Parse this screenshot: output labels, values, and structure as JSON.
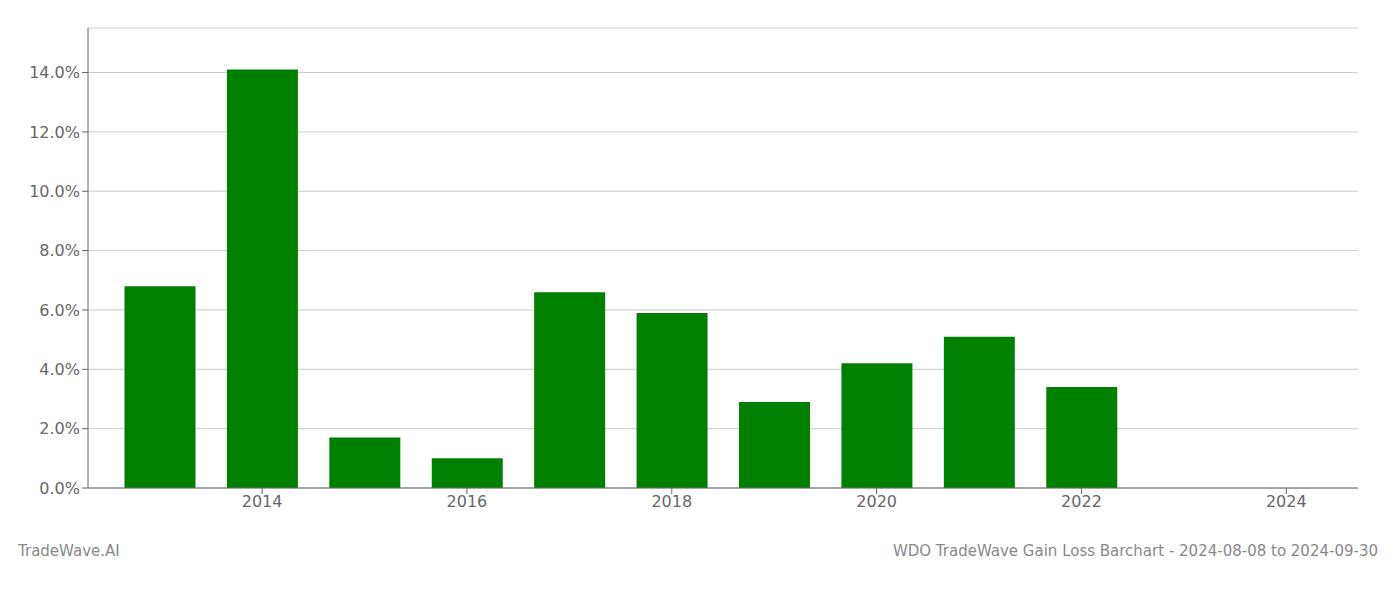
{
  "chart_data": {
    "type": "bar",
    "title": "WDO TradeWave Gain Loss Barchart - 2024-08-08 to 2024-09-30",
    "annotations": [
      "TradeWave.AI"
    ],
    "x": [
      2013,
      2014,
      2015,
      2016,
      2017,
      2018,
      2019,
      2020,
      2021,
      2022,
      2023
    ],
    "values": [
      0.068,
      0.141,
      0.017,
      0.01,
      0.066,
      0.059,
      0.029,
      0.042,
      0.051,
      0.034,
      0.0
    ],
    "color": "#008000",
    "xlim": [
      2012.3,
      2024.7
    ],
    "xticks": [
      2014,
      2016,
      2018,
      2020,
      2022,
      2024
    ],
    "ylim": [
      0,
      0.155
    ],
    "yticks": [
      {
        "value": 0.0,
        "label": "0.0%"
      },
      {
        "value": 0.02,
        "label": "2.0%"
      },
      {
        "value": 0.04,
        "label": "4.0%"
      },
      {
        "value": 0.06,
        "label": "6.0%"
      },
      {
        "value": 0.08,
        "label": "8.0%"
      },
      {
        "value": 0.1,
        "label": "10.0%"
      },
      {
        "value": 0.12,
        "label": "12.0%"
      },
      {
        "value": 0.14,
        "label": "14.0%"
      }
    ],
    "grid": true
  }
}
